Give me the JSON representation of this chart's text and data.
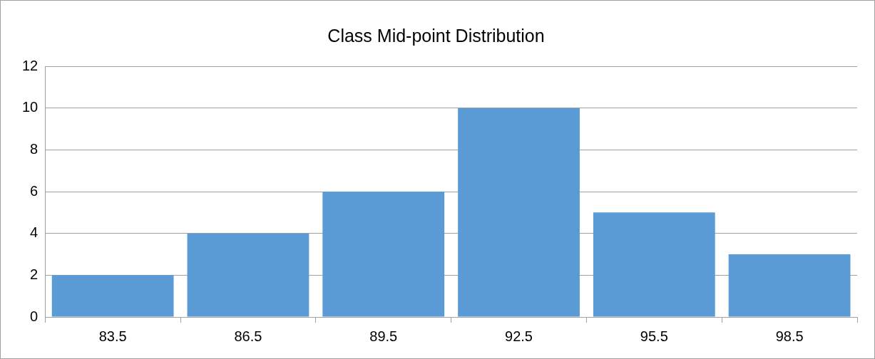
{
  "chart_data": {
    "type": "bar",
    "title": "Class Mid-point Distribution",
    "categories": [
      "83.5",
      "86.5",
      "89.5",
      "92.5",
      "95.5",
      "98.5"
    ],
    "values": [
      2,
      4,
      6,
      10,
      5,
      3
    ],
    "color": "#5b9bd5",
    "ylim": [
      0,
      12
    ],
    "yticks": [
      0,
      2,
      4,
      6,
      8,
      10,
      12
    ],
    "grid": "y"
  }
}
